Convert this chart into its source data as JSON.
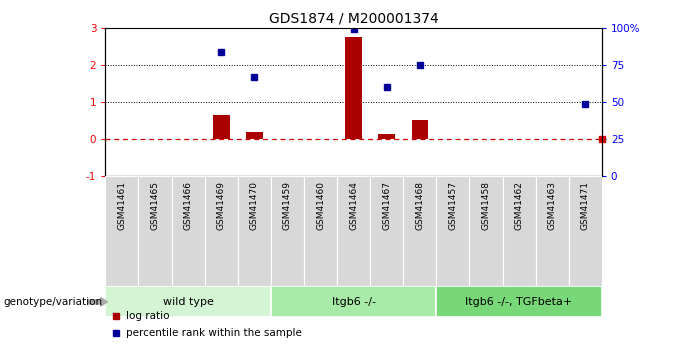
{
  "title": "GDS1874 / M200001374",
  "samples": [
    "GSM41461",
    "GSM41465",
    "GSM41466",
    "GSM41469",
    "GSM41470",
    "GSM41459",
    "GSM41460",
    "GSM41464",
    "GSM41467",
    "GSM41468",
    "GSM41457",
    "GSM41458",
    "GSM41462",
    "GSM41463",
    "GSM41471"
  ],
  "log_ratio": [
    0.0,
    0.0,
    0.0,
    0.65,
    0.18,
    0.0,
    0.0,
    2.75,
    0.13,
    0.5,
    0.0,
    0.0,
    0.0,
    0.0,
    0.0
  ],
  "percentile_rank_left": [
    null,
    null,
    null,
    2.33,
    1.67,
    null,
    null,
    2.95,
    1.4,
    2.0,
    null,
    null,
    null,
    null,
    0.93
  ],
  "groups": [
    {
      "label": "wild type",
      "start": 0,
      "end": 5,
      "color": "#d4f5d4"
    },
    {
      "label": "Itgb6 -/-",
      "start": 5,
      "end": 10,
      "color": "#a8eba8"
    },
    {
      "label": "Itgb6 -/-, TGFbeta+",
      "start": 10,
      "end": 15,
      "color": "#78d878"
    }
  ],
  "ylim_left": [
    -1,
    3
  ],
  "ylim_right": [
    0,
    100
  ],
  "yticks_left": [
    -1,
    0,
    1,
    2,
    3
  ],
  "yticks_right": [
    0,
    25,
    50,
    75,
    100
  ],
  "bar_color": "#aa0000",
  "dot_color": "#000099",
  "zero_line_color": "#cc0000",
  "cell_bg": "#d8d8d8"
}
